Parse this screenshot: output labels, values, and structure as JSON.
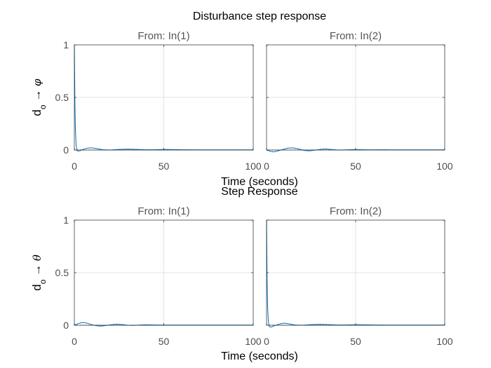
{
  "chart_data": [
    {
      "type": "line",
      "title": "Disturbance step response",
      "ylabel": {
        "main": "d",
        "sub": "o",
        "arrow": "→",
        "output": "φ"
      },
      "xlabel": "Time (seconds)",
      "xlim": [
        0,
        100
      ],
      "ylim": [
        0,
        1
      ],
      "xticks": [
        0,
        50,
        100
      ],
      "yticks": [
        0,
        0.5,
        1
      ],
      "yticklabels": [
        "0",
        "0.5",
        "1"
      ],
      "grid": true,
      "series_color": "#0072bd",
      "panels": [
        {
          "subtitle": "From: In(1)",
          "x": [
            0,
            0.3,
            0.6,
            1,
            1.5,
            2,
            3,
            4,
            6,
            8,
            10,
            12,
            14,
            16,
            20,
            25,
            30,
            35,
            40,
            45,
            50,
            55,
            60,
            70,
            80,
            90,
            100
          ],
          "y": [
            1,
            0.45,
            0.2,
            0.05,
            -0.005,
            -0.01,
            -0.008,
            0,
            0.012,
            0.02,
            0.02,
            0.015,
            0.008,
            0.003,
            0,
            0.006,
            0.008,
            0.006,
            0.003,
            0.003,
            0.006,
            0.004,
            0.003,
            0.002,
            0.002,
            0.002,
            0.002
          ]
        },
        {
          "subtitle": "From: In(2)",
          "x": [
            0,
            2,
            4,
            6,
            9,
            12,
            15,
            18,
            21,
            24,
            27,
            30,
            33,
            36,
            40,
            45,
            50,
            55,
            60,
            65,
            70,
            80,
            90,
            100
          ],
          "y": [
            0,
            -0.012,
            -0.018,
            -0.01,
            0.004,
            0.018,
            0.02,
            0.01,
            -0.004,
            -0.008,
            -0.002,
            0.006,
            0.01,
            0.006,
            0,
            0.002,
            0.005,
            0.003,
            0.002,
            0.003,
            0.002,
            0.002,
            0.002,
            0.002
          ]
        }
      ]
    },
    {
      "type": "line",
      "title": "Step Response",
      "ylabel": {
        "main": "d",
        "sub": "o",
        "arrow": "→",
        "output": "θ"
      },
      "xlabel": "Time (seconds)",
      "xlim": [
        0,
        100
      ],
      "ylim": [
        0,
        1
      ],
      "xticks": [
        0,
        50,
        100
      ],
      "yticks": [
        0,
        0.5,
        1
      ],
      "yticklabels": [
        "0",
        "0.5",
        "1"
      ],
      "grid": true,
      "series_color": "#0072bd",
      "panels": [
        {
          "subtitle": "From: In(1)",
          "x": [
            0,
            2,
            4,
            6,
            8,
            10,
            12,
            15,
            18,
            21,
            24,
            27,
            30,
            33,
            36,
            40,
            45,
            50,
            55,
            60,
            70,
            80,
            90,
            100
          ],
          "y": [
            0,
            0.015,
            0.025,
            0.025,
            0.015,
            0.005,
            -0.004,
            -0.008,
            -0.002,
            0.006,
            0.01,
            0.006,
            0,
            -0.002,
            0.002,
            0.004,
            0.003,
            0.002,
            0.002,
            0.002,
            0.002,
            0.002,
            0.002,
            0.002
          ]
        },
        {
          "subtitle": "From: In(2)",
          "x": [
            0,
            0.3,
            0.6,
            1,
            1.5,
            2,
            3,
            4,
            6,
            8,
            10,
            12,
            14,
            16,
            20,
            25,
            30,
            35,
            40,
            45,
            50,
            55,
            60,
            70,
            80,
            90,
            100
          ],
          "y": [
            1,
            0.43,
            0.18,
            0.04,
            -0.01,
            -0.018,
            -0.015,
            -0.008,
            0.005,
            0.015,
            0.02,
            0.015,
            0.008,
            0.003,
            0,
            0.006,
            0.008,
            0.006,
            0.003,
            0.003,
            0.005,
            0.004,
            0.003,
            0.002,
            0.002,
            0.002,
            0.002
          ]
        }
      ]
    }
  ]
}
